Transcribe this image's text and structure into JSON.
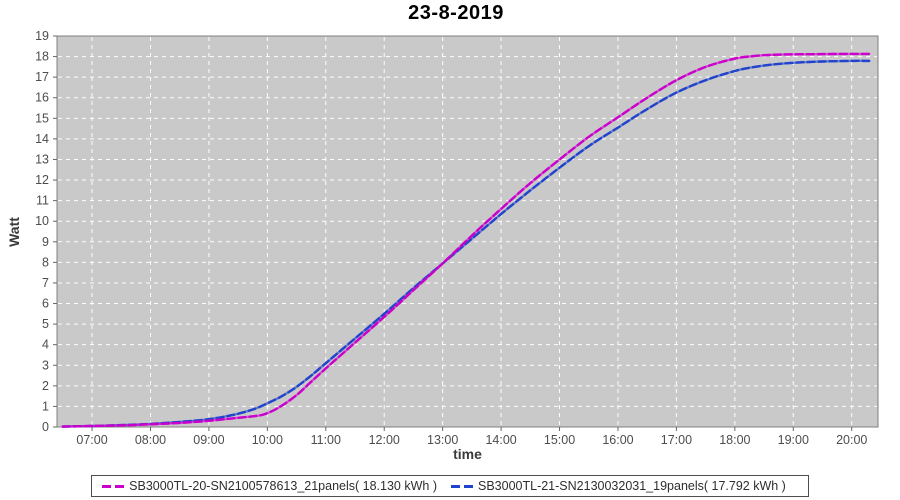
{
  "title": "23-8-2019",
  "colors": {
    "plot_bg": "#c9c9c9",
    "plot_border": "#808080",
    "grid": "#ffffff",
    "tick": "#666666",
    "tick_label": "#4d4d4d",
    "series1": "#cc00cc",
    "series2": "#2244cc"
  },
  "axes": {
    "x_label": "time",
    "y_label": "Watt",
    "x_tick_labels": [
      "07:00",
      "08:00",
      "09:00",
      "10:00",
      "11:00",
      "12:00",
      "13:00",
      "14:00",
      "15:00",
      "16:00",
      "17:00",
      "18:00",
      "19:00",
      "20:00"
    ],
    "y_tick_labels": [
      "0",
      "1",
      "2",
      "3",
      "4",
      "5",
      "6",
      "7",
      "8",
      "9",
      "10",
      "11",
      "12",
      "13",
      "14",
      "15",
      "16",
      "17",
      "18",
      "19"
    ]
  },
  "legend": {
    "items": [
      {
        "label": "SB3000TL-20-SN2100578613_21panels( 18.130 kWh )",
        "color": "#cc00cc"
      },
      {
        "label": "SB3000TL-21-SN2130032031_19panels( 17.792 kWh )",
        "color": "#2244cc"
      }
    ]
  },
  "chart_data": {
    "type": "line",
    "title": "23-8-2019",
    "xlabel": "time",
    "ylabel": "Watt",
    "x_unit": "hour_of_day",
    "xlim": [
      6.4,
      20.45
    ],
    "ylim": [
      0,
      19
    ],
    "grid": true,
    "legend_position": "bottom",
    "series": [
      {
        "name": "SB3000TL-20-SN2100578613_21panels( 18.130 kWh )",
        "color": "#cc00cc",
        "total_kwh": 18.13,
        "points": [
          [
            6.5,
            0.02
          ],
          [
            7.0,
            0.05
          ],
          [
            7.5,
            0.08
          ],
          [
            8.0,
            0.13
          ],
          [
            8.5,
            0.2
          ],
          [
            9.0,
            0.3
          ],
          [
            9.4,
            0.42
          ],
          [
            9.75,
            0.52
          ],
          [
            9.95,
            0.62
          ],
          [
            10.2,
            0.95
          ],
          [
            10.5,
            1.55
          ],
          [
            10.75,
            2.2
          ],
          [
            11.0,
            2.85
          ],
          [
            11.5,
            4.1
          ],
          [
            12.0,
            5.35
          ],
          [
            12.5,
            6.65
          ],
          [
            13.0,
            7.95
          ],
          [
            13.5,
            9.3
          ],
          [
            14.0,
            10.6
          ],
          [
            14.5,
            11.85
          ],
          [
            15.0,
            13.0
          ],
          [
            15.5,
            14.1
          ],
          [
            16.0,
            15.05
          ],
          [
            16.5,
            16.0
          ],
          [
            17.0,
            16.85
          ],
          [
            17.5,
            17.5
          ],
          [
            18.0,
            17.9
          ],
          [
            18.3,
            18.02
          ],
          [
            18.6,
            18.08
          ],
          [
            19.0,
            18.11
          ],
          [
            19.5,
            18.12
          ],
          [
            20.0,
            18.13
          ],
          [
            20.3,
            18.13
          ]
        ]
      },
      {
        "name": "SB3000TL-21-SN2130032031_19panels( 17.792 kWh )",
        "color": "#2244cc",
        "total_kwh": 17.792,
        "points": [
          [
            6.5,
            0.02
          ],
          [
            7.0,
            0.05
          ],
          [
            7.5,
            0.09
          ],
          [
            8.0,
            0.15
          ],
          [
            8.5,
            0.25
          ],
          [
            9.0,
            0.38
          ],
          [
            9.4,
            0.58
          ],
          [
            9.75,
            0.85
          ],
          [
            10.0,
            1.15
          ],
          [
            10.25,
            1.5
          ],
          [
            10.5,
            1.95
          ],
          [
            10.75,
            2.5
          ],
          [
            11.0,
            3.1
          ],
          [
            11.5,
            4.3
          ],
          [
            12.0,
            5.5
          ],
          [
            12.5,
            6.75
          ],
          [
            13.0,
            7.95
          ],
          [
            13.5,
            9.15
          ],
          [
            14.0,
            10.35
          ],
          [
            14.5,
            11.5
          ],
          [
            15.0,
            12.6
          ],
          [
            15.5,
            13.65
          ],
          [
            16.0,
            14.55
          ],
          [
            16.5,
            15.45
          ],
          [
            17.0,
            16.25
          ],
          [
            17.5,
            16.85
          ],
          [
            18.0,
            17.3
          ],
          [
            18.3,
            17.48
          ],
          [
            18.6,
            17.6
          ],
          [
            19.0,
            17.7
          ],
          [
            19.5,
            17.76
          ],
          [
            20.0,
            17.79
          ],
          [
            20.3,
            17.79
          ]
        ]
      }
    ]
  }
}
